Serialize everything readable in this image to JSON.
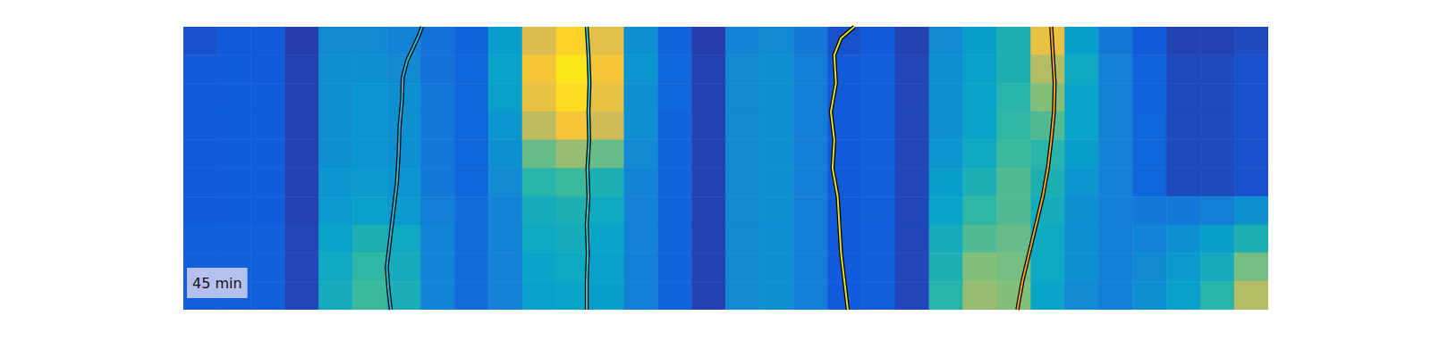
{
  "chart_data": {
    "type": "heatmap",
    "annotation": "45 min",
    "xlim": [
      0,
      32
    ],
    "ylim": [
      10,
      0
    ],
    "tick_labels": false,
    "clim": [
      0,
      1
    ],
    "cells": [
      [
        0.1,
        0.12,
        0.12,
        0.05,
        0.28,
        0.28,
        0.26,
        0.2,
        0.15,
        0.35,
        0.78,
        0.9,
        0.8,
        0.3,
        0.15,
        0.05,
        0.26,
        0.28,
        0.22,
        0.1,
        0.12,
        0.06,
        0.28,
        0.35,
        0.45,
        0.82,
        0.35,
        0.22,
        0.12,
        0.06,
        0.06,
        0.08
      ],
      [
        0.12,
        0.13,
        0.12,
        0.06,
        0.3,
        0.3,
        0.28,
        0.2,
        0.16,
        0.38,
        0.85,
        0.95,
        0.85,
        0.32,
        0.16,
        0.06,
        0.28,
        0.3,
        0.24,
        0.12,
        0.14,
        0.07,
        0.3,
        0.36,
        0.45,
        0.7,
        0.4,
        0.25,
        0.15,
        0.08,
        0.08,
        0.1
      ],
      [
        0.12,
        0.13,
        0.13,
        0.06,
        0.3,
        0.32,
        0.3,
        0.22,
        0.16,
        0.36,
        0.82,
        0.92,
        0.82,
        0.3,
        0.16,
        0.06,
        0.28,
        0.3,
        0.24,
        0.12,
        0.14,
        0.07,
        0.3,
        0.38,
        0.48,
        0.62,
        0.38,
        0.25,
        0.15,
        0.08,
        0.08,
        0.1
      ],
      [
        0.12,
        0.13,
        0.13,
        0.06,
        0.3,
        0.32,
        0.3,
        0.22,
        0.16,
        0.33,
        0.72,
        0.85,
        0.75,
        0.3,
        0.15,
        0.06,
        0.28,
        0.3,
        0.24,
        0.12,
        0.14,
        0.07,
        0.3,
        0.38,
        0.5,
        0.55,
        0.38,
        0.25,
        0.16,
        0.08,
        0.08,
        0.1
      ],
      [
        0.12,
        0.13,
        0.13,
        0.06,
        0.3,
        0.32,
        0.3,
        0.22,
        0.16,
        0.3,
        0.58,
        0.65,
        0.58,
        0.28,
        0.15,
        0.06,
        0.28,
        0.3,
        0.24,
        0.12,
        0.14,
        0.07,
        0.32,
        0.4,
        0.52,
        0.48,
        0.35,
        0.25,
        0.16,
        0.08,
        0.08,
        0.1
      ],
      [
        0.12,
        0.13,
        0.13,
        0.06,
        0.32,
        0.34,
        0.32,
        0.22,
        0.16,
        0.28,
        0.48,
        0.52,
        0.45,
        0.26,
        0.15,
        0.06,
        0.28,
        0.3,
        0.24,
        0.12,
        0.14,
        0.07,
        0.35,
        0.45,
        0.55,
        0.45,
        0.32,
        0.25,
        0.16,
        0.08,
        0.08,
        0.1
      ],
      [
        0.12,
        0.13,
        0.13,
        0.06,
        0.34,
        0.36,
        0.34,
        0.24,
        0.18,
        0.26,
        0.42,
        0.45,
        0.4,
        0.25,
        0.15,
        0.06,
        0.28,
        0.3,
        0.24,
        0.12,
        0.14,
        0.07,
        0.38,
        0.5,
        0.55,
        0.42,
        0.3,
        0.24,
        0.22,
        0.22,
        0.24,
        0.3
      ],
      [
        0.14,
        0.14,
        0.14,
        0.07,
        0.38,
        0.45,
        0.4,
        0.26,
        0.18,
        0.26,
        0.4,
        0.42,
        0.38,
        0.25,
        0.15,
        0.06,
        0.28,
        0.3,
        0.24,
        0.12,
        0.14,
        0.07,
        0.42,
        0.55,
        0.58,
        0.4,
        0.3,
        0.24,
        0.26,
        0.3,
        0.35,
        0.45
      ],
      [
        0.14,
        0.14,
        0.14,
        0.07,
        0.4,
        0.5,
        0.42,
        0.26,
        0.18,
        0.25,
        0.38,
        0.4,
        0.36,
        0.24,
        0.15,
        0.06,
        0.28,
        0.3,
        0.24,
        0.12,
        0.14,
        0.07,
        0.45,
        0.62,
        0.6,
        0.4,
        0.3,
        0.24,
        0.28,
        0.34,
        0.42,
        0.6
      ],
      [
        0.14,
        0.14,
        0.14,
        0.07,
        0.42,
        0.52,
        0.44,
        0.26,
        0.18,
        0.25,
        0.36,
        0.38,
        0.35,
        0.24,
        0.15,
        0.06,
        0.28,
        0.3,
        0.24,
        0.12,
        0.14,
        0.07,
        0.48,
        0.65,
        0.62,
        0.38,
        0.28,
        0.24,
        0.3,
        0.36,
        0.48,
        0.7
      ]
    ],
    "series": [
      {
        "type": "line",
        "color": "#22b4d6",
        "x": [
          7.04,
          6.95,
          6.6,
          6.47,
          6.45,
          6.38,
          6.35,
          6.3,
          6.2,
          6.1,
          6.0,
          6.05,
          6.12
        ],
        "values": [
          0,
          0.3,
          1.2,
          1.8,
          2.6,
          3.5,
          4.5,
          5.5,
          6.5,
          7.5,
          8.5,
          9.3,
          10
        ]
      },
      {
        "type": "line",
        "color": "#33c6c4",
        "x": [
          11.9,
          11.95,
          11.98,
          11.95,
          11.97,
          11.92,
          11.95,
          11.9,
          11.93,
          11.9,
          11.9
        ],
        "values": [
          0,
          1,
          2,
          3,
          4,
          5,
          6,
          7,
          8,
          9,
          10
        ]
      },
      {
        "type": "line",
        "color": "#e9e11d",
        "x": [
          19.79,
          19.4,
          19.2,
          19.25,
          19.1,
          19.2,
          19.15,
          19.3,
          19.35,
          19.4,
          19.5,
          19.6
        ],
        "values": [
          0,
          0.4,
          1,
          2,
          3,
          4,
          5,
          6,
          7,
          8,
          9,
          10
        ]
      },
      {
        "type": "line",
        "color": "#f2a21f",
        "x": [
          25.6,
          25.65,
          25.7,
          25.68,
          25.6,
          25.5,
          25.35,
          25.15,
          24.95,
          24.75,
          24.6
        ],
        "values": [
          0,
          1,
          2,
          3,
          4,
          5,
          6,
          7,
          8,
          9,
          10
        ]
      }
    ]
  }
}
